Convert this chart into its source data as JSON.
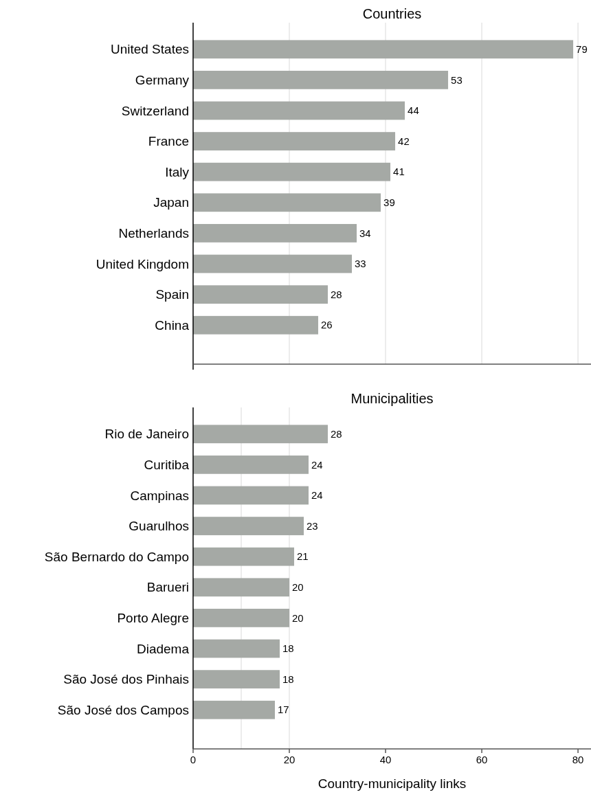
{
  "chart_data": [
    {
      "type": "bar",
      "orientation": "horizontal",
      "title": "Countries",
      "categories": [
        "United States",
        "Germany",
        "Switzerland",
        "France",
        "Italy",
        "Japan",
        "Netherlands",
        "United Kingdom",
        "Spain",
        "China"
      ],
      "values": [
        79,
        53,
        44,
        42,
        41,
        39,
        34,
        33,
        28,
        26
      ],
      "color": "#a5a9a5",
      "data_labels": true,
      "xlim": [
        0,
        82.7
      ],
      "xticks": [
        20,
        40,
        60,
        80
      ],
      "grid": "x",
      "tick_labels": "y"
    },
    {
      "type": "bar",
      "orientation": "horizontal",
      "title": "Municipalities",
      "categories": [
        "Rio de Janeiro",
        "Curitiba",
        "Campinas",
        "Guarulhos",
        "São Bernardo do Campo",
        "Barueri",
        "Porto Alegre",
        "Diadema",
        "São José dos Pinhais",
        "São José dos Campos"
      ],
      "values": [
        28,
        24,
        24,
        23,
        21,
        20,
        20,
        18,
        18,
        17
      ],
      "color": "#a5a9a5",
      "data_labels": true,
      "xlim": [
        0,
        82.7
      ],
      "xticks": [
        0,
        20,
        40,
        60,
        80
      ],
      "xlabel": "Country-municipality links",
      "ref_lines": [
        {
          "axis": "x",
          "value": 10,
          "color": "#e6e6e6"
        },
        {
          "axis": "x",
          "value": 20,
          "color": "#e6e6e6"
        }
      ]
    }
  ]
}
